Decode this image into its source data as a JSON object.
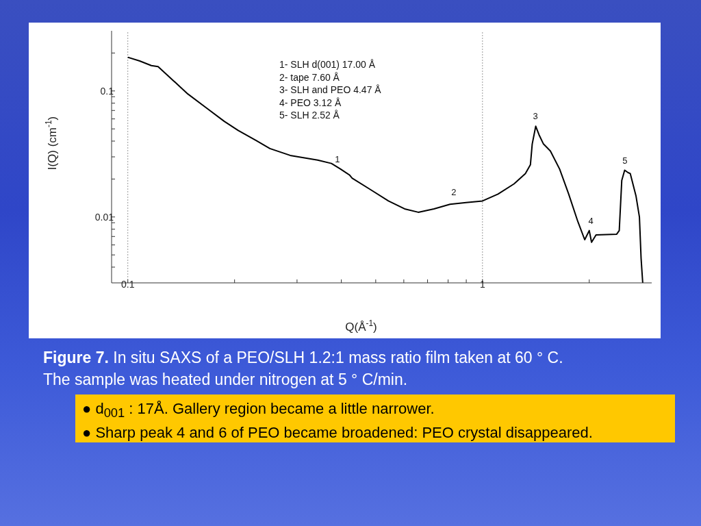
{
  "chart_data": {
    "type": "line",
    "xlabel": "Q(Å$^{-1}$)",
    "ylabel": "I(Q) (cm$^{-1}$)",
    "log": "xy",
    "xlim": [
      0.09,
      3
    ],
    "ylim": [
      0.003,
      0.3
    ],
    "xticks": [
      0.1,
      {
        "value": 0.2,
        "label": null
      },
      {
        "value": 0.3,
        "label": null
      },
      {
        "value": 0.4,
        "label": null
      },
      {
        "value": 0.5,
        "label": null
      },
      {
        "value": 0.6,
        "label": null
      },
      {
        "value": 0.7,
        "label": null
      },
      {
        "value": 0.8,
        "label": null
      },
      {
        "value": 0.9,
        "label": null
      },
      1,
      {
        "value": 2,
        "label": null
      }
    ],
    "yticks": [
      {
        "value": 0.004,
        "label": null
      },
      {
        "value": 0.005,
        "label": null
      },
      {
        "value": 0.006,
        "label": null
      },
      {
        "value": 0.007,
        "label": null
      },
      {
        "value": 0.008,
        "label": null
      },
      {
        "value": 0.009,
        "label": null
      },
      0.01,
      {
        "value": 0.02,
        "label": null
      },
      {
        "value": 0.03,
        "label": null
      },
      {
        "value": 0.04,
        "label": null
      },
      {
        "value": 0.05,
        "label": null
      },
      {
        "value": 0.06,
        "label": null
      },
      {
        "value": 0.07,
        "label": null
      },
      {
        "value": 0.08,
        "label": null
      },
      {
        "value": 0.09,
        "label": null
      },
      0.1,
      {
        "value": 0.2,
        "label": null
      }
    ],
    "marker": "none",
    "line_style": "solid",
    "series": [
      {
        "color": "#000000",
        "x": [
          0.1,
          0.108,
          0.1165,
          0.1217,
          0.131,
          0.1476,
          0.166,
          0.187,
          0.2046,
          0.23,
          0.2515,
          0.287,
          0.343,
          0.375,
          0.398,
          0.422,
          0.429,
          0.483,
          0.543,
          0.603,
          0.659,
          0.73,
          0.81,
          0.899,
          1,
          1.106,
          1.227,
          1.321,
          1.365,
          1.381,
          1.413,
          1.444,
          1.486,
          1.554,
          1.65,
          1.75,
          1.857,
          1.942,
          2.0,
          2.03,
          2.09,
          2.39,
          2.43,
          2.47,
          2.517,
          2.573,
          2.61,
          2.71,
          2.77,
          2.8,
          2.83
        ],
        "values": [
          0.185,
          0.173,
          0.159,
          0.156,
          0.129,
          0.0947,
          0.0738,
          0.0574,
          0.0486,
          0.0404,
          0.0349,
          0.0308,
          0.0283,
          0.0266,
          0.024,
          0.0215,
          0.0203,
          0.0165,
          0.0134,
          0.0116,
          0.0109,
          0.0116,
          0.0126,
          0.013,
          0.0134,
          0.0152,
          0.0183,
          0.0221,
          0.026,
          0.0379,
          0.0525,
          0.0448,
          0.0379,
          0.0334,
          0.024,
          0.0152,
          0.0092,
          0.0066,
          0.0078,
          0.0063,
          0.0072,
          0.0073,
          0.0078,
          0.0195,
          0.0235,
          0.0225,
          0.0221,
          0.0146,
          0.01,
          0.0047,
          0.003
        ]
      }
    ],
    "ref_lines": [
      {
        "axis": "x",
        "value": 0.1,
        "color": "#999999",
        "line_style": "dotted"
      },
      {
        "axis": "x",
        "value": 1,
        "color": "#999999",
        "line_style": "dotted"
      }
    ],
    "annotations": [
      "1- SLH d(001) 17.00 Å",
      "2- tape 7.60 Å",
      "3- SLH and PEO 4.47 Å",
      "4- PEO 3.12 Å",
      "5- SLH 2.52 Å",
      {
        "text": "1",
        "x": 0.39,
        "y": 0.0245
      },
      {
        "text": "2",
        "x": 0.83,
        "y": 0.0135
      },
      {
        "text": "3",
        "x": 1.41,
        "y": 0.054
      },
      {
        "text": "4",
        "x": 2.02,
        "y": 0.008
      },
      {
        "text": "5",
        "x": 2.52,
        "y": 0.024
      },
      "Figure 7.",
      "In situ SAXS of a PEO/SLH 1.2:1 mass ratio film taken at 60 ° C. The sample was heated under nitrogen at 5 ° C/min.",
      "● d$_{001}$ : 17Å. Gallery region became a little narrower.",
      "● Sharp peak 4 and 6 of PEO became broadened: PEO crystal disappeared."
    ]
  }
}
